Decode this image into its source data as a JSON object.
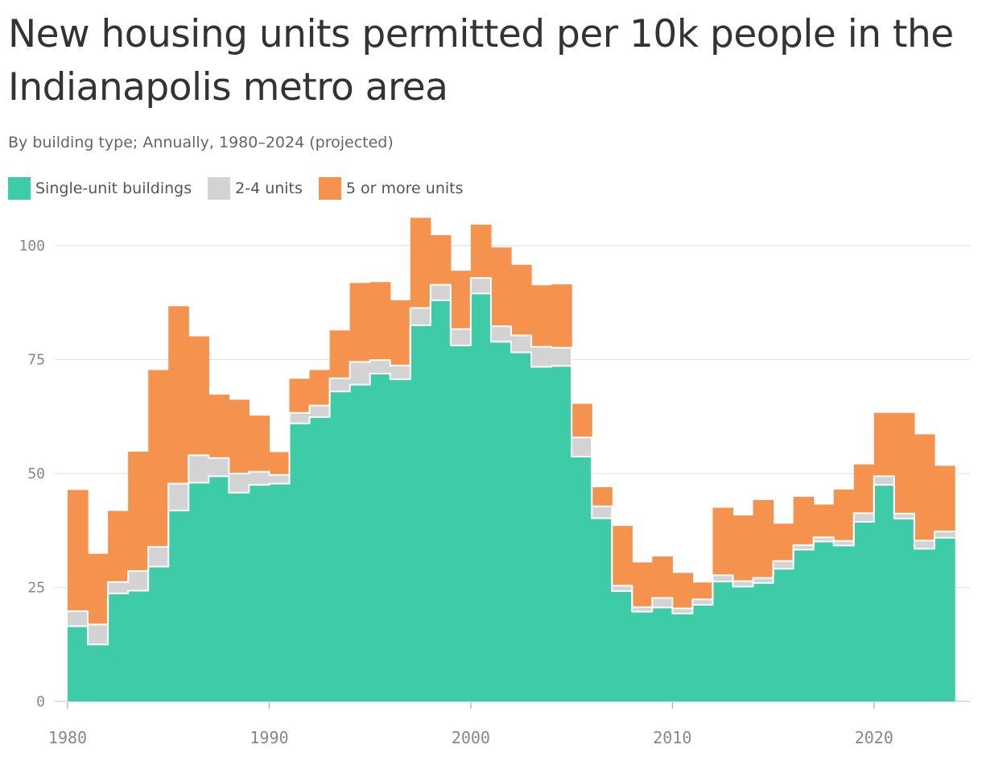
{
  "chart_data": {
    "type": "area",
    "title": "New housing units permitted per 10k people in the Indianapolis metro area",
    "subtitle": "By building type; Annually, 1980–2024 (projected)",
    "stacked": true,
    "step": true,
    "x": [
      1980,
      1981,
      1982,
      1983,
      1984,
      1985,
      1986,
      1987,
      1988,
      1989,
      1990,
      1991,
      1992,
      1993,
      1994,
      1995,
      1996,
      1997,
      1998,
      1999,
      2000,
      2001,
      2002,
      2003,
      2004,
      2005,
      2006,
      2007,
      2008,
      2009,
      2010,
      2011,
      2012,
      2013,
      2014,
      2015,
      2016,
      2017,
      2018,
      2019,
      2020,
      2021,
      2022,
      2023,
      2024
    ],
    "series": [
      {
        "name": "Single-unit buildings",
        "color": "#3dcca7",
        "values": [
          16.5,
          12.5,
          23.7,
          24.3,
          29.6,
          41.9,
          48.0,
          49.4,
          45.8,
          47.5,
          47.8,
          61.0,
          62.4,
          68.0,
          69.5,
          71.9,
          70.7,
          82.5,
          88.0,
          78.1,
          89.5,
          78.9,
          76.6,
          73.4,
          73.6,
          53.7,
          40.2,
          24.2,
          19.7,
          20.6,
          19.3,
          21.2,
          26.3,
          25.2,
          26.0,
          29.1,
          33.3,
          35.1,
          34.2,
          39.4,
          47.5,
          40.1,
          33.5,
          35.9,
          35.9
        ]
      },
      {
        "name": "2-4 units",
        "color": "#d3d3d3",
        "values": [
          3.3,
          4.4,
          2.5,
          4.3,
          4.3,
          5.9,
          6.0,
          4.0,
          4.2,
          2.9,
          1.9,
          2.3,
          2.5,
          2.9,
          5.0,
          3.0,
          3.0,
          3.8,
          3.4,
          3.6,
          3.4,
          3.4,
          3.7,
          4.4,
          4.0,
          4.2,
          2.6,
          1.2,
          1.0,
          2.1,
          1.1,
          1.2,
          1.4,
          1.2,
          1.1,
          1.7,
          1.0,
          0.9,
          1.0,
          1.9,
          1.9,
          1.1,
          1.8,
          1.4,
          1.4
        ]
      },
      {
        "name": "5 or more units",
        "color": "#f5924d",
        "values": [
          26.6,
          15.5,
          15.6,
          26.2,
          38.8,
          38.9,
          26.1,
          13.9,
          16.2,
          12.3,
          5.0,
          7.5,
          7.8,
          10.5,
          17.3,
          17.1,
          14.3,
          19.8,
          10.9,
          12.8,
          11.7,
          17.3,
          15.5,
          13.5,
          13.9,
          7.4,
          4.2,
          13.1,
          9.8,
          9.1,
          7.8,
          3.7,
          14.8,
          14.4,
          17.1,
          8.2,
          10.6,
          7.2,
          11.3,
          10.7,
          13.9,
          22.1,
          23.3,
          14.4,
          14.4
        ]
      }
    ],
    "x_ticks": [
      "1980",
      "1990",
      "2000",
      "2010",
      "2020"
    ],
    "y_ticks": [
      "0",
      "25",
      "50",
      "75",
      "100"
    ],
    "ylim": [
      0,
      110
    ],
    "xlim": [
      1980,
      2024
    ],
    "grid": "horizontal",
    "legend_position": "top-left"
  }
}
